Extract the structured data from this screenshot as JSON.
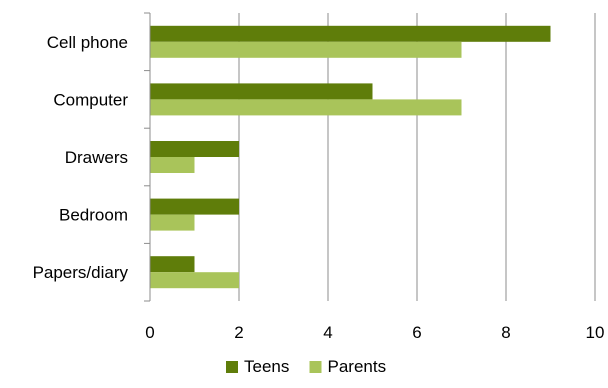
{
  "chart_data": {
    "type": "bar",
    "orientation": "horizontal",
    "categories": [
      "Cell phone",
      "Computer",
      "Drawers",
      "Bedroom",
      "Papers/diary"
    ],
    "series": [
      {
        "name": "Teens",
        "values": [
          9,
          5,
          2,
          2,
          1
        ],
        "color": "#5f7d0a"
      },
      {
        "name": "Parents",
        "values": [
          7,
          7,
          1,
          1,
          2
        ],
        "color": "#a9c45a"
      }
    ],
    "xlim": [
      0,
      10
    ],
    "xticks": [
      "0",
      "2",
      "4",
      "6",
      "8",
      "10"
    ],
    "grid": "vertical",
    "legend": "bottom"
  }
}
